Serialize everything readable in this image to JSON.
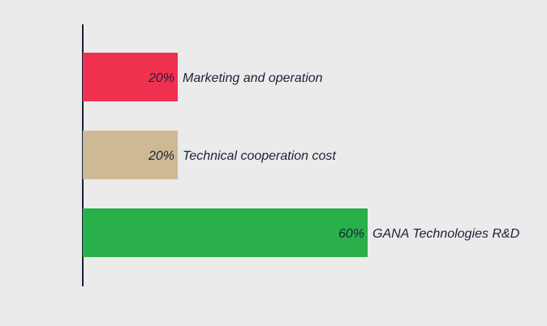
{
  "chart_data": {
    "type": "bar",
    "orientation": "horizontal",
    "title": "",
    "xlabel": "",
    "ylabel": "",
    "xlim": [
      0,
      60
    ],
    "grid": false,
    "legend": "none",
    "categories": [
      "Marketing and operation",
      "Technical cooperation cost",
      "GANA Technologies R&D"
    ],
    "values": [
      20,
      20,
      60
    ],
    "value_labels": [
      "20%",
      "20%",
      "60%"
    ],
    "unit": "%",
    "colors": [
      "#f0304f",
      "#cdb994",
      "#29b04b"
    ]
  }
}
